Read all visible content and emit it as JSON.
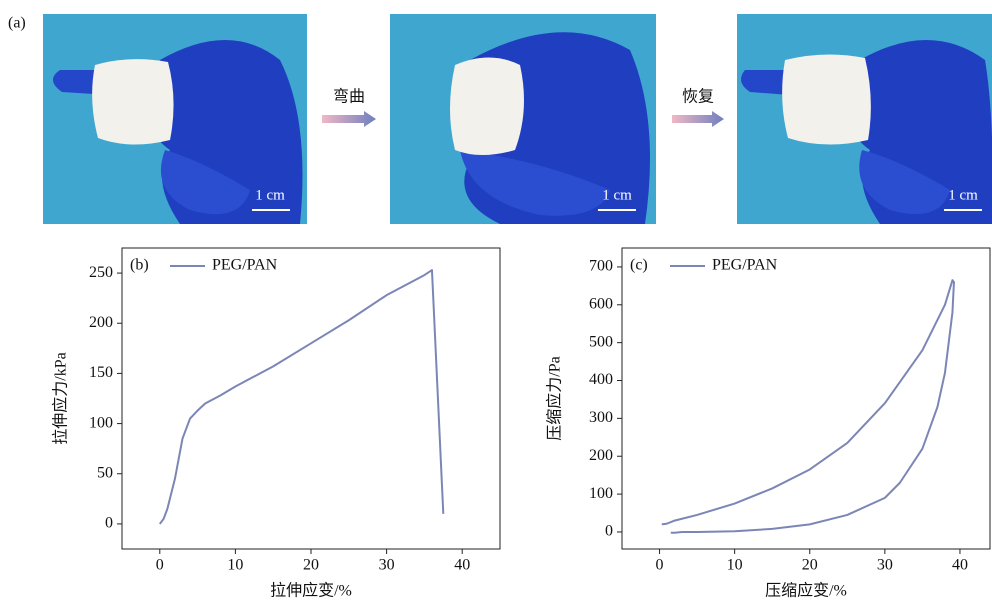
{
  "panel_a": {
    "label": "(a)",
    "scale_bars": [
      "1 cm",
      "1 cm",
      "1 cm"
    ],
    "arrows": [
      "弯曲",
      "恢复"
    ]
  },
  "chart_data": [
    {
      "type": "line",
      "panel_label": "(b)",
      "x_label": "拉伸应变/%",
      "y_label": "拉伸应力/kPa",
      "xlim": [
        -5,
        45
      ],
      "xticks": [
        0,
        10,
        20,
        30,
        40
      ],
      "ylim": [
        -25,
        275
      ],
      "yticks": [
        0,
        50,
        100,
        150,
        200,
        250
      ],
      "legend": "top-left",
      "series": [
        {
          "name": "PEG/PAN",
          "color": "#7b86b6",
          "x": [
            0,
            0.5,
            1,
            2,
            3,
            4,
            5,
            6,
            8,
            10,
            15,
            20,
            25,
            30,
            35,
            36,
            37.5
          ],
          "values": [
            0,
            5,
            15,
            45,
            85,
            105,
            113,
            120,
            128,
            137,
            157,
            180,
            203,
            228,
            248,
            253,
            10
          ]
        }
      ]
    },
    {
      "type": "line",
      "panel_label": "(c)",
      "x_label": "压缩应变/%",
      "y_label": "压缩应力/Pa",
      "xlim": [
        -5,
        44
      ],
      "xticks": [
        0,
        10,
        20,
        30,
        40
      ],
      "ylim": [
        -45,
        750
      ],
      "yticks": [
        0,
        100,
        200,
        300,
        400,
        500,
        600,
        700
      ],
      "legend": "top-left",
      "series": [
        {
          "name": "PEG/PAN",
          "color": "#7b86b6",
          "x": [
            0.3,
            1,
            2,
            5,
            10,
            15,
            20,
            25,
            30,
            35,
            38,
            39,
            39.2,
            39,
            38,
            37,
            35,
            32,
            30,
            25,
            20,
            15,
            10,
            5,
            3,
            2,
            1.5
          ],
          "values": [
            20,
            22,
            30,
            45,
            75,
            115,
            165,
            235,
            340,
            480,
            600,
            665,
            660,
            580,
            420,
            330,
            220,
            130,
            90,
            45,
            20,
            8,
            2,
            0,
            0,
            -2,
            -2
          ]
        }
      ]
    }
  ]
}
